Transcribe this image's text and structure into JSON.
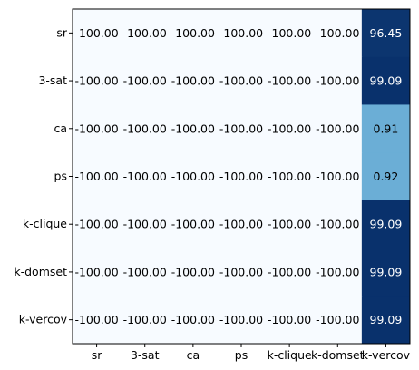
{
  "chart_data": {
    "type": "heatmap",
    "title": "",
    "xlabel": "",
    "ylabel": "",
    "x_categories": [
      "sr",
      "3-sat",
      "ca",
      "ps",
      "k-clique",
      "k-domset",
      "k-vercov"
    ],
    "y_categories": [
      "sr",
      "3-sat",
      "ca",
      "ps",
      "k-clique",
      "k-domset",
      "k-vercov"
    ],
    "values": [
      [
        -100.0,
        -100.0,
        -100.0,
        -100.0,
        -100.0,
        -100.0,
        96.45
      ],
      [
        -100.0,
        -100.0,
        -100.0,
        -100.0,
        -100.0,
        -100.0,
        99.09
      ],
      [
        -100.0,
        -100.0,
        -100.0,
        -100.0,
        -100.0,
        -100.0,
        0.91
      ],
      [
        -100.0,
        -100.0,
        -100.0,
        -100.0,
        -100.0,
        -100.0,
        0.92
      ],
      [
        -100.0,
        -100.0,
        -100.0,
        -100.0,
        -100.0,
        -100.0,
        99.09
      ],
      [
        -100.0,
        -100.0,
        -100.0,
        -100.0,
        -100.0,
        -100.0,
        99.09
      ],
      [
        -100.0,
        -100.0,
        -100.0,
        -100.0,
        -100.0,
        -100.0,
        99.09
      ]
    ],
    "cell_labels": [
      [
        "-100.00",
        "-100.00",
        "-100.00",
        "-100.00",
        "-100.00",
        "-100.00",
        "96.45"
      ],
      [
        "-100.00",
        "-100.00",
        "-100.00",
        "-100.00",
        "-100.00",
        "-100.00",
        "99.09"
      ],
      [
        "-100.00",
        "-100.00",
        "-100.00",
        "-100.00",
        "-100.00",
        "-100.00",
        "0.91"
      ],
      [
        "-100.00",
        "-100.00",
        "-100.00",
        "-100.00",
        "-100.00",
        "-100.00",
        "0.92"
      ],
      [
        "-100.00",
        "-100.00",
        "-100.00",
        "-100.00",
        "-100.00",
        "-100.00",
        "99.09"
      ],
      [
        "-100.00",
        "-100.00",
        "-100.00",
        "-100.00",
        "-100.00",
        "-100.00",
        "99.09"
      ],
      [
        "-100.00",
        "-100.00",
        "-100.00",
        "-100.00",
        "-100.00",
        "-100.00",
        "99.09"
      ]
    ],
    "colormap": "Blues",
    "color_scale": {
      "low_value": -100,
      "low_color": "#f7fbff",
      "high_value": 100,
      "high_color": "#08306b",
      "mid_value": 0.9,
      "mid_color": "#6baed6"
    },
    "text_colors": {
      "on_dark": "#ffffff",
      "on_light": "#000000"
    },
    "grid": false,
    "legend": "none"
  }
}
